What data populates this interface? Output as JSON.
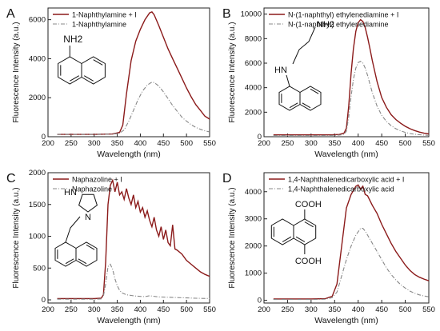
{
  "chart_data": [
    {
      "type": "line",
      "panel_label": "A",
      "xlabel": "Wavelength (nm)",
      "ylabel": "Fluorescence Intensity (a.u.)",
      "xlim": [
        200,
        550
      ],
      "ylim": [
        0,
        6600
      ],
      "xticks": [
        200,
        250,
        300,
        350,
        400,
        450,
        500,
        550
      ],
      "yticks": [
        0,
        2000,
        4000,
        6000
      ],
      "legend_position": "top-left",
      "structure": "1-naphthylamine",
      "structure_labels": [
        "NH2"
      ],
      "series": [
        {
          "name": "1-Naphthylamine + I",
          "color": "#8b1a1a",
          "dash": "solid",
          "x": [
            220,
            260,
            300,
            340,
            355,
            362,
            370,
            380,
            390,
            400,
            410,
            420,
            425,
            430,
            440,
            450,
            460,
            470,
            480,
            490,
            500,
            510,
            520,
            530,
            540,
            550
          ],
          "y": [
            120,
            120,
            120,
            140,
            220,
            600,
            2200,
            3900,
            4900,
            5500,
            6000,
            6350,
            6400,
            6250,
            5700,
            5100,
            4500,
            4000,
            3500,
            3000,
            2500,
            2050,
            1650,
            1350,
            1050,
            900
          ]
        },
        {
          "name": "1-Naphthylamine",
          "color": "#888888",
          "dash": "dashdot",
          "x": [
            220,
            260,
            300,
            340,
            355,
            365,
            375,
            385,
            395,
            405,
            415,
            425,
            430,
            440,
            450,
            460,
            470,
            480,
            490,
            500,
            510,
            520,
            530,
            540,
            550
          ],
          "y": [
            120,
            120,
            120,
            130,
            180,
            350,
            800,
            1350,
            1900,
            2350,
            2650,
            2800,
            2780,
            2600,
            2300,
            1950,
            1600,
            1300,
            1000,
            800,
            620,
            480,
            380,
            300,
            250
          ]
        }
      ]
    },
    {
      "type": "line",
      "panel_label": "B",
      "xlabel": "Wavelength (nm)",
      "ylabel": "Fluorescence Intensity (a.u.)",
      "xlim": [
        200,
        550
      ],
      "ylim": [
        0,
        10500
      ],
      "xticks": [
        200,
        250,
        300,
        350,
        400,
        450,
        500,
        550
      ],
      "yticks": [
        0,
        2000,
        4000,
        6000,
        8000,
        10000
      ],
      "legend_position": "top-left",
      "structure": "N-(1-naphthyl)ethylenediamine",
      "structure_labels": [
        "NH2",
        "HN"
      ],
      "series": [
        {
          "name": "N-(1-naphthyl) ethylenediamine + I",
          "color": "#8b1a1a",
          "dash": "solid",
          "x": [
            220,
            260,
            300,
            340,
            360,
            370,
            375,
            380,
            385,
            390,
            395,
            400,
            405,
            410,
            415,
            420,
            425,
            430,
            440,
            450,
            460,
            470,
            480,
            490,
            500,
            510,
            520,
            530,
            540,
            550
          ],
          "y": [
            150,
            150,
            150,
            150,
            180,
            300,
            700,
            2500,
            5200,
            7200,
            8600,
            9300,
            9550,
            9400,
            8900,
            8100,
            7200,
            6200,
            4500,
            3200,
            2400,
            1800,
            1400,
            1100,
            850,
            650,
            500,
            380,
            290,
            230
          ]
        },
        {
          "name": "N-(1-naphthyl) ethylenediamine",
          "color": "#888888",
          "dash": "dashdot",
          "x": [
            220,
            260,
            300,
            340,
            360,
            370,
            375,
            380,
            385,
            390,
            395,
            400,
            405,
            410,
            415,
            420,
            425,
            430,
            440,
            450,
            460,
            470,
            480,
            490,
            500,
            510,
            520,
            530,
            540,
            550
          ],
          "y": [
            100,
            100,
            100,
            100,
            130,
            200,
            450,
            1600,
            3300,
            4700,
            5600,
            6050,
            6150,
            6000,
            5600,
            5000,
            4300,
            3600,
            2500,
            1750,
            1250,
            900,
            650,
            480,
            350,
            260,
            200,
            160,
            130,
            110
          ]
        }
      ]
    },
    {
      "type": "line",
      "panel_label": "C",
      "xlabel": "Wavelength (nm)",
      "ylabel": "Fluorescence Intensity (a.u.)",
      "xlim": [
        200,
        550
      ],
      "ylim": [
        -50,
        2000
      ],
      "xticks": [
        200,
        250,
        300,
        350,
        400,
        450,
        500,
        550
      ],
      "yticks": [
        0,
        500,
        1000,
        1500,
        2000
      ],
      "legend_position": "top-left",
      "structure": "naphazoline",
      "structure_labels": [
        "HN",
        "N"
      ],
      "series": [
        {
          "name": "Naphazoline + I",
          "color": "#8b1a1a",
          "dash": "solid",
          "x": [
            220,
            260,
            300,
            315,
            320,
            325,
            330,
            335,
            340,
            345,
            350,
            355,
            360,
            365,
            370,
            375,
            380,
            385,
            390,
            395,
            400,
            405,
            410,
            415,
            420,
            425,
            430,
            435,
            440,
            445,
            450,
            455,
            460,
            465,
            470,
            475,
            480,
            490,
            500,
            510,
            520,
            530,
            540,
            550
          ],
          "y": [
            20,
            20,
            20,
            25,
            80,
            600,
            1500,
            1800,
            1880,
            1700,
            1850,
            1650,
            1700,
            1580,
            1750,
            1600,
            1500,
            1650,
            1450,
            1550,
            1380,
            1450,
            1300,
            1400,
            1250,
            1150,
            1300,
            1100,
            1000,
            1150,
            950,
            1100,
            900,
            850,
            1180,
            800,
            780,
            720,
            620,
            560,
            500,
            440,
            400,
            370
          ]
        },
        {
          "name": "Naphazoline",
          "color": "#888888",
          "dash": "dashdot",
          "x": [
            220,
            260,
            300,
            315,
            320,
            325,
            330,
            335,
            340,
            345,
            350,
            355,
            360,
            370,
            380,
            390,
            400,
            410,
            420,
            440,
            460,
            480,
            500,
            520,
            550
          ],
          "y": [
            10,
            10,
            10,
            15,
            60,
            250,
            520,
            560,
            480,
            330,
            220,
            150,
            110,
            80,
            70,
            60,
            55,
            50,
            65,
            45,
            40,
            35,
            30,
            25,
            20
          ]
        }
      ]
    },
    {
      "type": "line",
      "panel_label": "D",
      "xlabel": "Wavelength (nm)",
      "ylabel": "Fluorescence Intensity (a.u.)",
      "xlim": [
        200,
        550
      ],
      "ylim": [
        -100,
        4700
      ],
      "xticks": [
        200,
        250,
        300,
        350,
        400,
        450,
        500,
        550
      ],
      "yticks": [
        0,
        1000,
        2000,
        3000,
        4000
      ],
      "legend_position": "top-left",
      "structure": "1,4-naphthalenedicarboxylic acid",
      "structure_labels": [
        "COOH",
        "COOH"
      ],
      "series": [
        {
          "name": "1,4-Naphthalenedicarboxylic acid + I",
          "color": "#8b1a1a",
          "dash": "solid",
          "x": [
            220,
            260,
            300,
            330,
            345,
            355,
            365,
            375,
            385,
            395,
            400,
            405,
            410,
            415,
            420,
            430,
            440,
            450,
            460,
            470,
            480,
            490,
            500,
            510,
            520,
            530,
            540,
            550
          ],
          "y": [
            50,
            50,
            50,
            60,
            150,
            600,
            2000,
            3400,
            3900,
            4200,
            4250,
            4100,
            4200,
            3900,
            3850,
            3500,
            3200,
            2800,
            2450,
            2100,
            1800,
            1550,
            1300,
            1100,
            950,
            850,
            780,
            720
          ]
        },
        {
          "name": "1,4-Naphthalenedicarboxylic acid",
          "color": "#888888",
          "dash": "dashdot",
          "x": [
            220,
            260,
            300,
            330,
            345,
            355,
            365,
            375,
            385,
            395,
            405,
            410,
            415,
            420,
            430,
            440,
            450,
            460,
            470,
            480,
            490,
            500,
            510,
            520,
            530,
            540,
            550
          ],
          "y": [
            30,
            30,
            30,
            40,
            100,
            300,
            900,
            1500,
            2000,
            2400,
            2650,
            2650,
            2550,
            2400,
            2100,
            1800,
            1500,
            1200,
            950,
            750,
            580,
            450,
            340,
            260,
            200,
            160,
            130
          ]
        }
      ]
    }
  ]
}
